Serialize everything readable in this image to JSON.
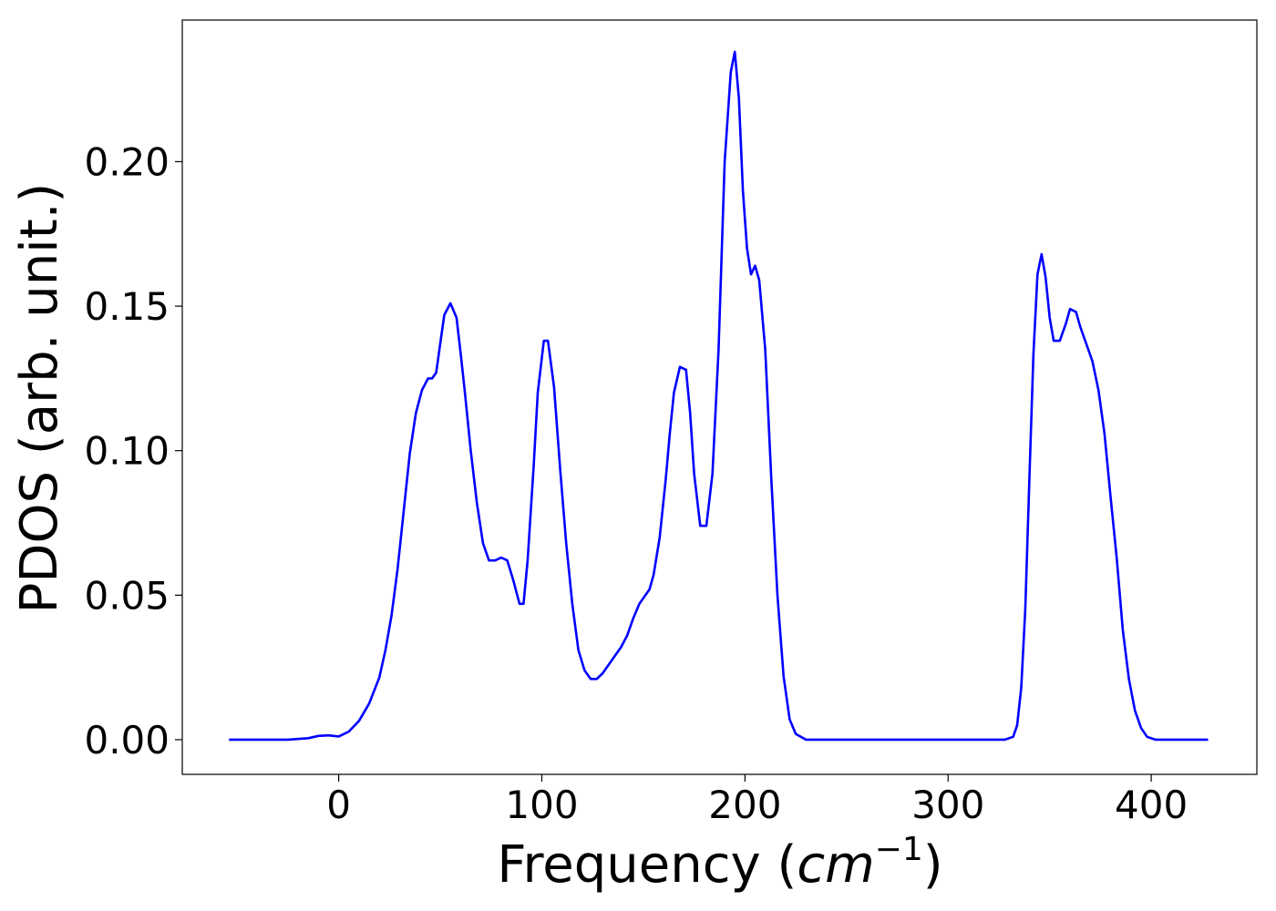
{
  "chart_data": {
    "type": "line",
    "title": "",
    "xlabel": {
      "prefix": "Frequency (",
      "italic": "cm",
      "sup": "−1",
      "suffix": ")"
    },
    "ylabel": "PDOS (arb. unit.)",
    "xlim": [
      -77,
      452
    ],
    "ylim": [
      -0.012,
      0.249
    ],
    "xticks": [
      0,
      100,
      200,
      300,
      400
    ],
    "xtick_labels": [
      "0",
      "100",
      "200",
      "300",
      "400"
    ],
    "yticks": [
      0.0,
      0.05,
      0.1,
      0.15,
      0.2
    ],
    "ytick_labels": [
      "0.00",
      "0.05",
      "0.10",
      "0.15",
      "0.20"
    ],
    "grid": false,
    "legend": "none",
    "series": [
      {
        "color": "#0000ff",
        "x": [
          -54,
          -40,
          -25,
          -15,
          -10,
          -5,
          0,
          5,
          10,
          15,
          20,
          23,
          26,
          29,
          32,
          35,
          38,
          41,
          44,
          46,
          48,
          50,
          52,
          55,
          58,
          60,
          62,
          65,
          68,
          71,
          74,
          77,
          80,
          83,
          86,
          89,
          91,
          93,
          96,
          98,
          101,
          103,
          106,
          109,
          112,
          115,
          118,
          121,
          124,
          127,
          130,
          133,
          136,
          139,
          142,
          145,
          148,
          151,
          153,
          155,
          158,
          161,
          163,
          165,
          168,
          171,
          173,
          175,
          178,
          181,
          184,
          187,
          190,
          193,
          195,
          197,
          199,
          201,
          203,
          205,
          207,
          210,
          213,
          216,
          219,
          222,
          225,
          230,
          240,
          260,
          280,
          300,
          320,
          328,
          332,
          334,
          336,
          338,
          340,
          342,
          344,
          346,
          348,
          350,
          352,
          355,
          358,
          360,
          363,
          365,
          368,
          371,
          374,
          377,
          380,
          383,
          386,
          389,
          392,
          395,
          398,
          402,
          410,
          420,
          428
        ],
        "y": [
          0.0,
          0.0,
          0.0,
          0.0005,
          0.0013,
          0.0015,
          0.0011,
          0.0028,
          0.0065,
          0.0125,
          0.0215,
          0.031,
          0.043,
          0.059,
          0.079,
          0.099,
          0.113,
          0.121,
          0.125,
          0.125,
          0.127,
          0.137,
          0.147,
          0.151,
          0.146,
          0.134,
          0.121,
          0.1,
          0.082,
          0.068,
          0.062,
          0.062,
          0.063,
          0.062,
          0.055,
          0.047,
          0.047,
          0.062,
          0.095,
          0.12,
          0.138,
          0.138,
          0.122,
          0.094,
          0.068,
          0.047,
          0.031,
          0.024,
          0.021,
          0.021,
          0.023,
          0.026,
          0.029,
          0.032,
          0.036,
          0.042,
          0.047,
          0.05,
          0.052,
          0.057,
          0.07,
          0.09,
          0.106,
          0.12,
          0.129,
          0.128,
          0.113,
          0.092,
          0.074,
          0.074,
          0.092,
          0.135,
          0.2,
          0.231,
          0.238,
          0.222,
          0.19,
          0.17,
          0.161,
          0.164,
          0.159,
          0.135,
          0.09,
          0.05,
          0.022,
          0.007,
          0.002,
          0.0,
          0.0,
          0.0,
          0.0,
          0.0,
          0.0,
          0.0,
          0.001,
          0.005,
          0.018,
          0.045,
          0.09,
          0.133,
          0.161,
          0.168,
          0.16,
          0.146,
          0.138,
          0.138,
          0.144,
          0.149,
          0.148,
          0.143,
          0.137,
          0.131,
          0.121,
          0.106,
          0.084,
          0.063,
          0.038,
          0.021,
          0.01,
          0.004,
          0.001,
          0.0,
          0.0,
          0.0,
          0.0
        ]
      }
    ]
  }
}
